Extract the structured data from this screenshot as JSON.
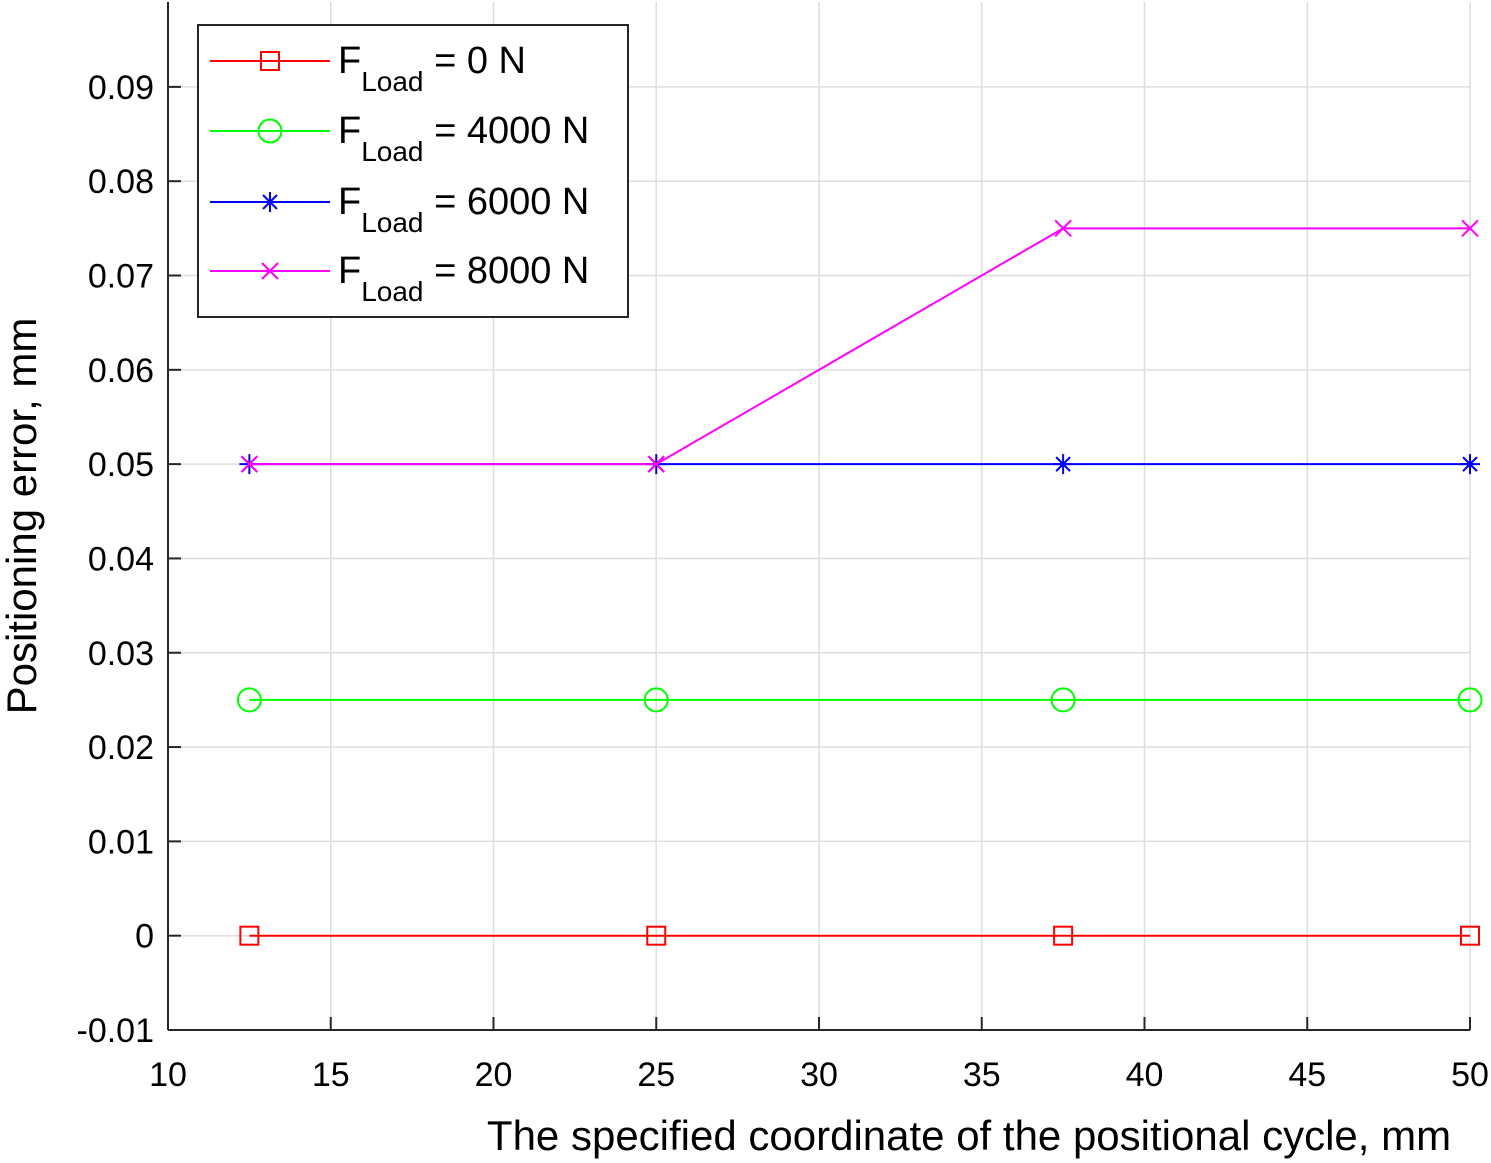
{
  "chart_data": {
    "type": "line",
    "title": "",
    "xlabel": "The specified coordinate of the positional cycle, mm",
    "ylabel": "Positioning error, mm",
    "xlim": [
      10,
      50
    ],
    "ylim": [
      -0.01,
      0.099
    ],
    "xticks": [
      10,
      15,
      20,
      25,
      30,
      35,
      40,
      45,
      50
    ],
    "xtick_labels": [
      "10",
      "15",
      "20",
      "25",
      "30",
      "35",
      "40",
      "45",
      "50"
    ],
    "yticks": [
      -0.01,
      0,
      0.01,
      0.02,
      0.03,
      0.04,
      0.05,
      0.06,
      0.07,
      0.08,
      0.09
    ],
    "ytick_labels": [
      "-0.01",
      "0",
      "0.01",
      "0.02",
      "0.03",
      "0.04",
      "0.05",
      "0.06",
      "0.07",
      "0.08",
      "0.09"
    ],
    "grid": true,
    "legend_position": "top-left",
    "x": [
      12.5,
      25,
      37.5,
      50
    ],
    "series": [
      {
        "name_main": "F",
        "name_sub": "Load",
        "name_rest": " = 0 N",
        "values": [
          0,
          0,
          0,
          0
        ],
        "color": "#ff0000",
        "marker": "square"
      },
      {
        "name_main": "F",
        "name_sub": "Load",
        "name_rest": " = 4000 N",
        "values": [
          0.025,
          0.025,
          0.025,
          0.025
        ],
        "color": "#00ff00",
        "marker": "circle"
      },
      {
        "name_main": "F",
        "name_sub": "Load",
        "name_rest": " = 6000 N",
        "values": [
          0.05,
          0.05,
          0.05,
          0.05
        ],
        "color": "#0000ff",
        "marker": "asterisk"
      },
      {
        "name_main": "F",
        "name_sub": "Load",
        "name_rest": " = 8000 N",
        "values": [
          0.05,
          0.05,
          0.075,
          0.075
        ],
        "color": "#ff00ff",
        "marker": "x"
      }
    ]
  }
}
